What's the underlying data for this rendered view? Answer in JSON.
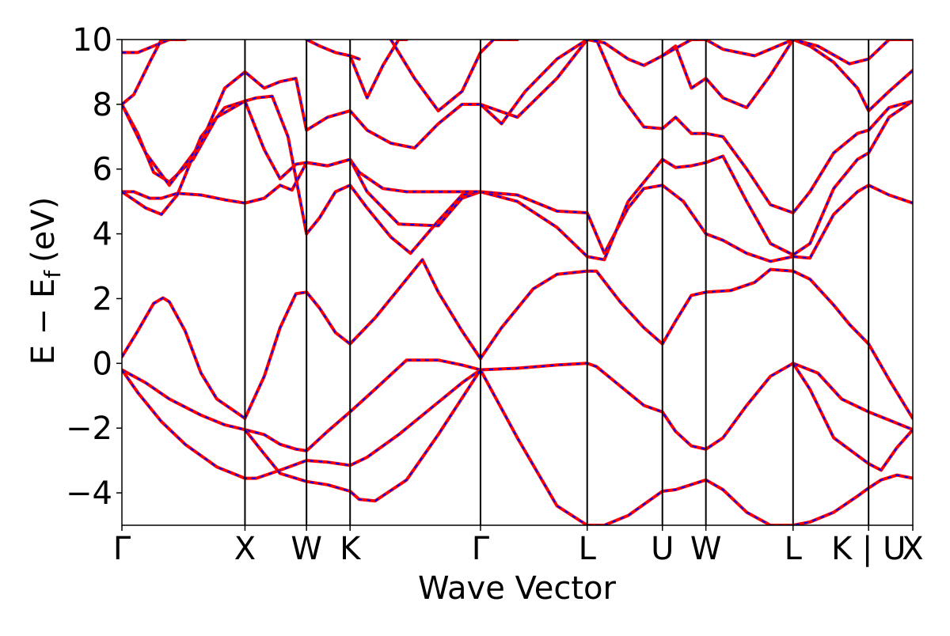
{
  "chart_data": {
    "type": "line",
    "title": "",
    "xlabel": "Wave Vector",
    "ylabel_parts": {
      "main": "E − E",
      "subscript": "f",
      "unit": "(eV)"
    },
    "ylim": [
      -5,
      10
    ],
    "yticks": [
      -4,
      -2,
      0,
      2,
      4,
      6,
      8,
      10
    ],
    "ytick_labels": [
      "−4",
      "−2",
      "0",
      "2",
      "4",
      "6",
      "8",
      "10"
    ],
    "xlim": [
      0,
      1
    ],
    "high_symmetry_points": [
      {
        "label": "Γ",
        "x": 0.0
      },
      {
        "label": "X",
        "x": 0.1556
      },
      {
        "label": "W",
        "x": 0.2334
      },
      {
        "label": "K",
        "x": 0.2885
      },
      {
        "label": "Γ",
        "x": 0.4534
      },
      {
        "label": "L",
        "x": 0.5883
      },
      {
        "label": "U",
        "x": 0.6834
      },
      {
        "label": "W",
        "x": 0.7384
      },
      {
        "label": "L",
        "x": 0.8486
      },
      {
        "label": "K | U",
        "x": 0.9441
      },
      {
        "label": "X",
        "x": 1.0
      }
    ],
    "colors": {
      "series_a": "#ff0000",
      "series_b": "#0000ff",
      "axis": "#000000"
    },
    "series": [
      {
        "x": [
          0,
          0.02,
          0.04,
          0.052,
          0.06,
          0.08,
          0.1,
          0.12,
          0.1556
        ],
        "y": [
          0.2,
          1.0,
          1.85,
          2.02,
          1.9,
          1.0,
          -0.3,
          -1.1,
          -1.7
        ]
      },
      {
        "x": [
          0.1556,
          0.18,
          0.2,
          0.22,
          0.2334,
          0.25,
          0.27,
          0.2885,
          0.32,
          0.36,
          0.38,
          0.4,
          0.43,
          0.4534
        ],
        "y": [
          -1.7,
          -0.4,
          1.1,
          2.15,
          2.2,
          1.7,
          0.95,
          0.6,
          1.4,
          2.6,
          3.2,
          2.2,
          1.0,
          0.15
        ]
      },
      {
        "x": [
          0.4534,
          0.48,
          0.52,
          0.55,
          0.5883,
          0.6,
          0.63,
          0.66,
          0.6834,
          0.7,
          0.72,
          0.7384,
          0.77,
          0.8,
          0.82,
          0.8486,
          0.87,
          0.9,
          0.92,
          0.9441,
          0.97,
          1.0
        ],
        "y": [
          0.15,
          1.1,
          2.3,
          2.75,
          2.85,
          2.85,
          1.9,
          1.1,
          0.6,
          1.3,
          2.1,
          2.2,
          2.25,
          2.5,
          2.9,
          2.85,
          2.6,
          1.8,
          1.2,
          0.6,
          -0.5,
          -1.7
        ]
      },
      {
        "x": [
          0,
          0.03,
          0.06,
          0.1,
          0.13,
          0.1556,
          0.18,
          0.2,
          0.22,
          0.2334,
          0.26,
          0.2885,
          0.32,
          0.36,
          0.4,
          0.43,
          0.4534
        ],
        "y": [
          -0.2,
          -0.6,
          -1.1,
          -1.6,
          -1.9,
          -2.05,
          -2.2,
          -2.5,
          -2.65,
          -2.7,
          -2.1,
          -1.5,
          -0.8,
          0.1,
          0.1,
          -0.05,
          -0.2
        ]
      },
      {
        "x": [
          0.4534,
          0.5,
          0.55,
          0.5883,
          0.6,
          0.63,
          0.66,
          0.6834,
          0.7,
          0.72,
          0.7384,
          0.76,
          0.79,
          0.82,
          0.8486,
          0.88,
          0.91,
          0.9441,
          0.97,
          1.0
        ],
        "y": [
          -0.2,
          -0.15,
          -0.05,
          0.0,
          -0.1,
          -0.7,
          -1.3,
          -1.5,
          -2.1,
          -2.55,
          -2.65,
          -2.3,
          -1.3,
          -0.4,
          0.0,
          -0.3,
          -1.1,
          -1.5,
          -1.75,
          -2.05
        ]
      },
      {
        "x": [
          0,
          0.02,
          0.05,
          0.08,
          0.12,
          0.1556,
          0.17,
          0.2,
          0.2334,
          0.26,
          0.2885,
          0.31,
          0.35,
          0.4,
          0.43,
          0.4534
        ],
        "y": [
          -0.2,
          -0.9,
          -1.8,
          -2.5,
          -3.2,
          -3.55,
          -3.55,
          -3.3,
          -3.0,
          -3.05,
          -3.15,
          -2.9,
          -2.2,
          -1.2,
          -0.6,
          -0.2
        ]
      },
      {
        "x": [
          0.4534,
          0.5,
          0.55,
          0.5883,
          0.61,
          0.64,
          0.6834,
          0.7,
          0.7384,
          0.76,
          0.79,
          0.82,
          0.8486,
          0.87,
          0.9,
          0.93,
          0.9441,
          0.96,
          0.98,
          1.0
        ],
        "y": [
          -0.2,
          -2.3,
          -4.4,
          -5.0,
          -5.0,
          -4.7,
          -3.95,
          -3.9,
          -3.6,
          -3.9,
          -4.6,
          -5.0,
          -5.0,
          -4.9,
          -4.6,
          -4.1,
          -3.85,
          -3.6,
          -3.45,
          -3.55
        ]
      },
      {
        "x": [
          0.1556,
          0.18,
          0.2,
          0.2334,
          0.26,
          0.2885,
          0.3,
          0.32,
          0.36,
          0.4,
          0.4534
        ],
        "y": [
          -2.05,
          -2.8,
          -3.4,
          -3.65,
          -3.75,
          -3.95,
          -4.2,
          -4.25,
          -3.6,
          -2.2,
          -0.2
        ]
      },
      {
        "x": [
          0.8486,
          0.87,
          0.9,
          0.9441,
          0.96,
          0.98,
          1.0
        ],
        "y": [
          0.0,
          -0.8,
          -2.3,
          -3.1,
          -3.3,
          -2.6,
          -2.05
        ]
      },
      {
        "x": [
          0,
          0.015,
          0.035,
          0.05,
          0.07,
          0.1,
          0.13,
          0.1556,
          0.18,
          0.2,
          0.215,
          0.2334,
          0.26,
          0.2885,
          0.31,
          0.35,
          0.4,
          0.43,
          0.4534
        ],
        "y": [
          5.3,
          5.3,
          5.1,
          5.1,
          5.25,
          5.2,
          5.05,
          4.95,
          5.1,
          5.5,
          5.35,
          6.2,
          6.1,
          6.3,
          5.3,
          4.3,
          4.25,
          5.1,
          5.3
        ]
      },
      {
        "x": [
          0,
          0.03,
          0.05,
          0.07,
          0.1,
          0.13,
          0.1556,
          0.17,
          0.19,
          0.21,
          0.2334,
          0.25,
          0.27,
          0.2885,
          0.31,
          0.34,
          0.365,
          0.4,
          0.43,
          0.4534
        ],
        "y": [
          5.3,
          4.8,
          4.6,
          5.2,
          7.0,
          7.9,
          8.1,
          8.2,
          8.25,
          7.0,
          4.0,
          4.5,
          5.3,
          5.5,
          4.8,
          3.9,
          3.4,
          4.4,
          5.2,
          5.3
        ]
      },
      {
        "x": [
          0.4534,
          0.5,
          0.55,
          0.5883,
          0.61,
          0.64,
          0.66,
          0.6834,
          0.71,
          0.7384,
          0.76,
          0.79,
          0.82,
          0.8486,
          0.87,
          0.9,
          0.93,
          0.9441,
          0.97,
          1.0
        ],
        "y": [
          5.3,
          5.2,
          4.7,
          4.65,
          3.4,
          4.8,
          5.4,
          5.5,
          5.0,
          4.0,
          3.8,
          3.4,
          3.15,
          3.3,
          3.25,
          4.6,
          5.3,
          5.5,
          5.2,
          4.95
        ]
      },
      {
        "x": [
          0.4534,
          0.5,
          0.55,
          0.5883,
          0.61,
          0.64,
          0.6834,
          0.7,
          0.72,
          0.7384,
          0.76,
          0.79,
          0.82,
          0.8486,
          0.87,
          0.9,
          0.93,
          0.9441,
          0.97,
          1.0
        ],
        "y": [
          5.3,
          5.0,
          4.2,
          3.3,
          3.2,
          5.0,
          6.3,
          6.05,
          6.1,
          6.2,
          6.4,
          5.0,
          3.7,
          3.35,
          3.7,
          5.4,
          6.3,
          6.5,
          7.6,
          8.1
        ]
      },
      {
        "x": [
          0.4534,
          0.5,
          0.55,
          0.5883,
          0.6,
          0.63,
          0.66,
          0.6834,
          0.7,
          0.72,
          0.7384,
          0.76,
          0.79,
          0.82,
          0.8486,
          0.87,
          0.9,
          0.93,
          0.9441,
          0.97,
          1.0
        ],
        "y": [
          8.0,
          7.6,
          8.8,
          10.0,
          10.0,
          8.3,
          7.3,
          7.25,
          7.6,
          7.1,
          7.1,
          7.0,
          6.0,
          4.9,
          4.65,
          5.3,
          6.5,
          7.1,
          7.2,
          7.9,
          8.1
        ]
      },
      {
        "x": [
          0,
          0.02,
          0.04,
          0.06,
          0.09,
          0.12,
          0.1556,
          0.18,
          0.2,
          0.22,
          0.2334,
          0.26,
          0.2885,
          0.3,
          0.33,
          0.36,
          0.39,
          0.42,
          0.4534
        ],
        "y": [
          8.0,
          7.1,
          5.9,
          5.6,
          6.3,
          7.6,
          8.1,
          6.6,
          5.7,
          6.15,
          6.2,
          6.1,
          6.3,
          5.9,
          5.4,
          5.3,
          5.3,
          5.3,
          5.3
        ]
      },
      {
        "x": [
          0,
          0.03,
          0.06,
          0.1,
          0.13,
          0.1556,
          0.18,
          0.2,
          0.22,
          0.2334,
          0.26,
          0.2885,
          0.31,
          0.34,
          0.37,
          0.4,
          0.43,
          0.4534
        ],
        "y": [
          8.0,
          6.5,
          5.5,
          6.8,
          8.5,
          9.0,
          8.5,
          8.7,
          8.8,
          7.2,
          7.6,
          7.8,
          7.2,
          6.8,
          6.65,
          7.4,
          8.0,
          8.0
        ]
      },
      {
        "x": [
          0.4534,
          0.48,
          0.51,
          0.55,
          0.5883,
          0.61,
          0.64,
          0.66,
          0.6834,
          0.7,
          0.72,
          0.7384,
          0.76,
          0.79,
          0.82,
          0.8486,
          0.87,
          0.9,
          0.93,
          0.9441,
          0.97,
          1.0
        ],
        "y": [
          8.0,
          7.4,
          8.4,
          9.4,
          10.0,
          9.9,
          9.4,
          9.2,
          9.5,
          9.8,
          8.5,
          8.8,
          8.2,
          7.9,
          8.9,
          10.0,
          9.8,
          9.3,
          8.5,
          7.8,
          8.4,
          9.05
        ]
      },
      {
        "x": [
          0,
          0.02,
          0.04,
          0.06,
          0.08
        ],
        "y": [
          9.6,
          9.6,
          9.8,
          10.0,
          10.0
        ]
      },
      {
        "x": [
          0,
          0.015,
          0.035,
          0.05,
          0.07
        ],
        "y": [
          8.0,
          8.3,
          9.3,
          10.0,
          10.0
        ]
      },
      {
        "x": [
          0.2885,
          0.31,
          0.33,
          0.35,
          0.36
        ],
        "y": [
          9.5,
          8.2,
          9.2,
          10.0,
          10.0
        ]
      },
      {
        "x": [
          0.2334,
          0.25,
          0.27,
          0.2885,
          0.3
        ],
        "y": [
          10.0,
          9.8,
          9.6,
          9.5,
          9.4
        ]
      },
      {
        "x": [
          0.34,
          0.37,
          0.4,
          0.43,
          0.4534,
          0.47,
          0.5
        ],
        "y": [
          10.0,
          8.8,
          7.8,
          8.4,
          9.6,
          10.0,
          10.0
        ]
      },
      {
        "x": [
          0.6834,
          0.72,
          0.7384,
          0.76,
          0.8,
          0.8486,
          0.88,
          0.92,
          0.9441,
          0.97,
          1.0
        ],
        "y": [
          9.5,
          10.0,
          10.0,
          9.7,
          9.5,
          10.0,
          9.8,
          9.25,
          9.4,
          10.0,
          10.0
        ]
      }
    ]
  }
}
